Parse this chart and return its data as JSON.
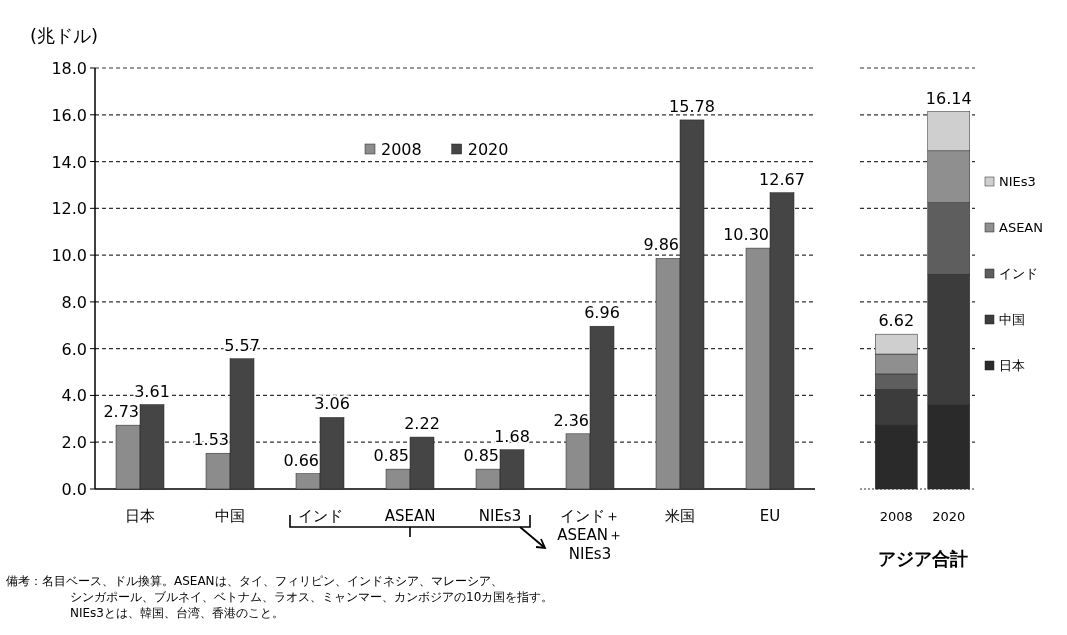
{
  "chart_data": [
    {
      "type": "bar",
      "ylabel": "(兆ドル)",
      "categories": [
        "日本",
        "中国",
        "インド",
        "ASEAN",
        "NIEs3",
        "インド＋ASEAN＋NIEs3",
        "米国",
        "EU"
      ],
      "series": [
        {
          "name": "2008",
          "color": "#8c8c8c",
          "values": [
            2.73,
            1.53,
            0.66,
            0.85,
            0.85,
            2.36,
            9.86,
            10.3
          ],
          "value_labels": [
            "2.73",
            "1.53",
            "0.66",
            "0.85",
            "0.85",
            "2.36",
            "9.86",
            "10.30"
          ]
        },
        {
          "name": "2020",
          "color": "#454545",
          "values": [
            3.61,
            5.57,
            3.06,
            2.22,
            1.68,
            6.96,
            15.78,
            12.67
          ],
          "value_labels": [
            "3.61",
            "5.57",
            "3.06",
            "2.22",
            "1.68",
            "6.96",
            "15.78",
            "12.67"
          ]
        }
      ],
      "ylim": [
        0,
        18
      ],
      "yticks": [
        {
          "value": 0,
          "label": "0.0"
        },
        {
          "value": 2,
          "label": "2.0"
        },
        {
          "value": 4,
          "label": "4.0"
        },
        {
          "value": 6,
          "label": "6.0"
        },
        {
          "value": 8,
          "label": "8.0"
        },
        {
          "value": 10,
          "label": "10.0"
        },
        {
          "value": 12,
          "label": "12.0"
        },
        {
          "value": 14,
          "label": "14.0"
        },
        {
          "value": 16,
          "label": "16.0"
        },
        {
          "value": 18,
          "label": "18.0"
        }
      ],
      "grid": "y",
      "legend": "top",
      "annotations": [
        "備考：名目ベース、ドル換算。ASEANは、タイ、フィリピン、インドネシア、マレーシア、",
        "シンガポール、ブルネイ、ベトナム、ラオス、ミャンマー、カンボジアの10カ国を指す。",
        "NIEs3とは、韓国、台湾、香港のこと。"
      ]
    },
    {
      "type": "bar",
      "stacked": true,
      "xlabel": "アジア合計",
      "categories": [
        "2008",
        "2020"
      ],
      "series": [
        {
          "name": "日本",
          "color": "#2a2a2a",
          "values": [
            2.73,
            3.61
          ]
        },
        {
          "name": "中国",
          "color": "#3c3c3c",
          "values": [
            1.53,
            5.57
          ]
        },
        {
          "name": "インド",
          "color": "#5e5e5e",
          "values": [
            0.66,
            3.06
          ]
        },
        {
          "name": "ASEAN",
          "color": "#8f8f8f",
          "values": [
            0.85,
            2.22
          ]
        },
        {
          "name": "NIEs3",
          "color": "#cfcfcf",
          "values": [
            0.85,
            1.68
          ]
        }
      ],
      "totals": [
        "6.62",
        "16.14"
      ],
      "ylim": [
        0,
        18
      ],
      "yticks": [
        0,
        2,
        4,
        6,
        8,
        10,
        12,
        14,
        16,
        18
      ],
      "tick_labels": "x",
      "grid": "y",
      "legend": "right"
    }
  ]
}
